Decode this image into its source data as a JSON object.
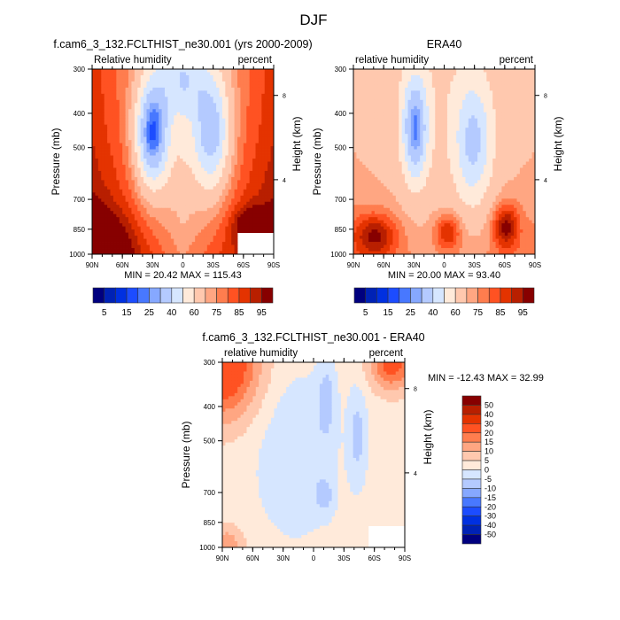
{
  "figure_title": "DJF",
  "chart_data": [
    {
      "type": "heatmap",
      "id": "model",
      "title": "f.cam6_3_132.FCLTHIST_ne30.001 (yrs 2000-2009)",
      "left_label": "Relative humidity",
      "right_label": "percent",
      "ylabel": "Pressure (mb)",
      "ylabel_right": "Height (km)",
      "x_ticks": [
        "90N",
        "60N",
        "30N",
        "0",
        "30S",
        "60S",
        "90S"
      ],
      "x_values": [
        90,
        60,
        30,
        0,
        -30,
        -60,
        -90
      ],
      "y_ticks": [
        "300",
        "400",
        "500",
        "700",
        "850",
        "1000"
      ],
      "y_values": [
        300,
        400,
        500,
        700,
        850,
        1000
      ],
      "y_right_ticks": [
        "8",
        "4"
      ],
      "y_right_values": [
        8,
        4
      ],
      "ylim": [
        1000,
        300
      ],
      "xlim": [
        90,
        -90
      ],
      "stats": "MIN =  20.42  MAX = 115.43",
      "min": 20.42,
      "max": 115.43,
      "colorbar": {
        "orientation": "horizontal",
        "labels": [
          "5",
          "15",
          "25",
          "40",
          "60",
          "75",
          "85",
          "95"
        ],
        "levels": [
          5,
          10,
          15,
          20,
          25,
          30,
          40,
          50,
          60,
          70,
          75,
          80,
          85,
          90,
          95
        ]
      }
    },
    {
      "type": "heatmap",
      "id": "obs",
      "title": "ERA40",
      "left_label": "relative humidity",
      "right_label": "percent",
      "ylabel": "Pressure (mb)",
      "ylabel_right": "Height (km)",
      "x_ticks": [
        "90N",
        "60N",
        "30N",
        "0",
        "30S",
        "60S",
        "90S"
      ],
      "x_values": [
        90,
        60,
        30,
        0,
        -30,
        -60,
        -90
      ],
      "y_ticks": [
        "300",
        "400",
        "500",
        "700",
        "850",
        "1000"
      ],
      "y_values": [
        300,
        400,
        500,
        700,
        850,
        1000
      ],
      "y_right_ticks": [
        "8",
        "4"
      ],
      "y_right_values": [
        8,
        4
      ],
      "ylim": [
        1000,
        300
      ],
      "xlim": [
        90,
        -90
      ],
      "stats": "MIN =  20.00  MAX =  93.40",
      "min": 20.0,
      "max": 93.4,
      "colorbar": {
        "orientation": "horizontal",
        "labels": [
          "5",
          "15",
          "25",
          "40",
          "60",
          "75",
          "85",
          "95"
        ],
        "levels": [
          5,
          10,
          15,
          20,
          25,
          30,
          40,
          50,
          60,
          70,
          75,
          80,
          85,
          90,
          95
        ]
      }
    },
    {
      "type": "heatmap",
      "id": "diff",
      "title": "f.cam6_3_132.FCLTHIST_ne30.001 - ERA40",
      "left_label": "relative humidity",
      "right_label": "percent",
      "ylabel": "Pressure (mb)",
      "ylabel_right": "Height (km)",
      "x_ticks": [
        "90N",
        "60N",
        "30N",
        "0",
        "30S",
        "60S",
        "90S"
      ],
      "x_values": [
        90,
        60,
        30,
        0,
        -30,
        -60,
        -90
      ],
      "y_ticks": [
        "300",
        "400",
        "500",
        "700",
        "850",
        "1000"
      ],
      "y_values": [
        300,
        400,
        500,
        700,
        850,
        1000
      ],
      "y_right_ticks": [
        "8",
        "4"
      ],
      "y_right_values": [
        8,
        4
      ],
      "ylim": [
        1000,
        300
      ],
      "xlim": [
        90,
        -90
      ],
      "stats": "MIN = -12.43  MAX =  32.99",
      "min": -12.43,
      "max": 32.99,
      "colorbar": {
        "orientation": "vertical",
        "labels": [
          "50",
          "40",
          "30",
          "20",
          "15",
          "10",
          "5",
          "0",
          "-5",
          "-10",
          "-15",
          "-20",
          "-30",
          "-40",
          "-50"
        ],
        "levels": [
          50,
          40,
          30,
          20,
          15,
          10,
          5,
          0,
          -5,
          -10,
          -15,
          -20,
          -30,
          -40,
          -50
        ]
      }
    }
  ],
  "palette": [
    "#00007f",
    "#0022b5",
    "#0030e0",
    "#1c4cff",
    "#4878ff",
    "#86a8ff",
    "#b4caff",
    "#d6e6ff",
    "#ffeada",
    "#ffc8ae",
    "#ffa682",
    "#ff7d4e",
    "#ff5222",
    "#e43300",
    "#b81f00",
    "#870000"
  ]
}
